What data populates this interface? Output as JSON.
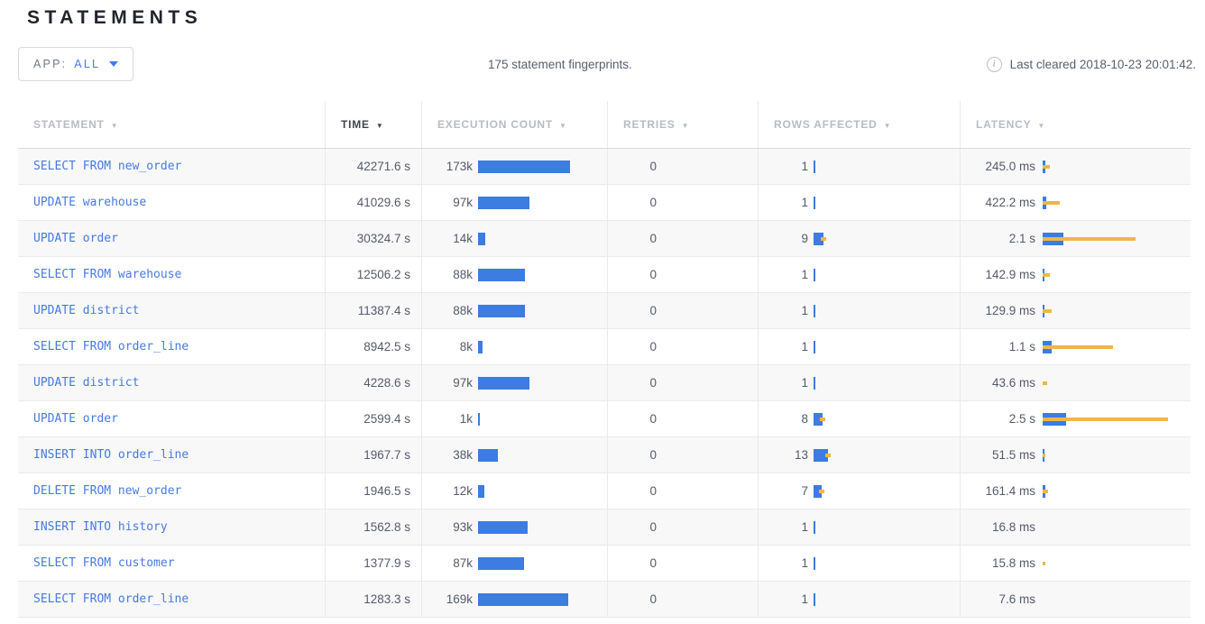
{
  "page": {
    "title": "STATEMENTS"
  },
  "toolbar": {
    "app_filter": {
      "label": "APP:",
      "value": "ALL"
    },
    "summary": "175 statement fingerprints.",
    "info_icon": "i",
    "last_cleared": "Last cleared 2018-10-23 20:01:42."
  },
  "colors": {
    "bar_blue": "#3d7ce0",
    "bar_yellow": "#eeb749",
    "statement_link": "#4879e2"
  },
  "table": {
    "columns": [
      {
        "id": "statement",
        "label": "STATEMENT",
        "sorted": false
      },
      {
        "id": "time",
        "label": "TIME",
        "sorted": true
      },
      {
        "id": "execution-count",
        "label": "EXECUTION COUNT",
        "sorted": false
      },
      {
        "id": "retries",
        "label": "RETRIES",
        "sorted": false
      },
      {
        "id": "rows-affected",
        "label": "ROWS AFFECTED",
        "sorted": false
      },
      {
        "id": "latency",
        "label": "LATENCY",
        "sorted": false
      }
    ],
    "sort_icon": "▼",
    "rows": [
      {
        "statement": "SELECT FROM new_order",
        "time": "42271.6 s",
        "executions": {
          "label": "173k",
          "bar": 102
        },
        "retries": "0",
        "rows_affected": {
          "label": "1",
          "bar": 2,
          "dev": 0
        },
        "latency": {
          "label": "245.0 ms",
          "bar": 3,
          "dev": 8
        }
      },
      {
        "statement": "UPDATE warehouse",
        "time": "41029.6 s",
        "executions": {
          "label": "97k",
          "bar": 57
        },
        "retries": "0",
        "rows_affected": {
          "label": "1",
          "bar": 2,
          "dev": 0
        },
        "latency": {
          "label": "422.2 ms",
          "bar": 4,
          "dev": 19
        }
      },
      {
        "statement": "UPDATE order",
        "time": "30324.7 s",
        "executions": {
          "label": "14k",
          "bar": 8
        },
        "retries": "0",
        "rows_affected": {
          "label": "9",
          "bar": 11,
          "dev": 6
        },
        "latency": {
          "label": "2.1 s",
          "bar": 23,
          "dev": 103
        }
      },
      {
        "statement": "SELECT FROM warehouse",
        "time": "12506.2 s",
        "executions": {
          "label": "88k",
          "bar": 52
        },
        "retries": "0",
        "rows_affected": {
          "label": "1",
          "bar": 2,
          "dev": 0
        },
        "latency": {
          "label": "142.9 ms",
          "bar": 2,
          "dev": 8
        }
      },
      {
        "statement": "UPDATE district",
        "time": "11387.4 s",
        "executions": {
          "label": "88k",
          "bar": 52
        },
        "retries": "0",
        "rows_affected": {
          "label": "1",
          "bar": 2,
          "dev": 0
        },
        "latency": {
          "label": "129.9 ms",
          "bar": 2,
          "dev": 10
        }
      },
      {
        "statement": "SELECT FROM order_line",
        "time": "8942.5 s",
        "executions": {
          "label": "8k",
          "bar": 5
        },
        "retries": "0",
        "rows_affected": {
          "label": "1",
          "bar": 2,
          "dev": 0
        },
        "latency": {
          "label": "1.1 s",
          "bar": 10,
          "dev": 78
        }
      },
      {
        "statement": "UPDATE district",
        "time": "4228.6 s",
        "executions": {
          "label": "97k",
          "bar": 57
        },
        "retries": "0",
        "rows_affected": {
          "label": "1",
          "bar": 2,
          "dev": 0
        },
        "latency": {
          "label": "43.6 ms",
          "bar": 0,
          "dev": 5
        }
      },
      {
        "statement": "UPDATE order",
        "time": "2599.4 s",
        "executions": {
          "label": "1k",
          "bar": 2
        },
        "retries": "0",
        "rows_affected": {
          "label": "8",
          "bar": 10,
          "dev": 6
        },
        "latency": {
          "label": "2.5 s",
          "bar": 26,
          "dev": 139
        }
      },
      {
        "statement": "INSERT INTO order_line",
        "time": "1967.7 s",
        "executions": {
          "label": "38k",
          "bar": 22
        },
        "retries": "0",
        "rows_affected": {
          "label": "13",
          "bar": 16,
          "dev": 6
        },
        "latency": {
          "label": "51.5 ms",
          "bar": 2,
          "dev": 3
        }
      },
      {
        "statement": "DELETE FROM new_order",
        "time": "1946.5 s",
        "executions": {
          "label": "12k",
          "bar": 7
        },
        "retries": "0",
        "rows_affected": {
          "label": "7",
          "bar": 9,
          "dev": 6
        },
        "latency": {
          "label": "161.4 ms",
          "bar": 3,
          "dev": 6
        }
      },
      {
        "statement": "INSERT INTO history",
        "time": "1562.8 s",
        "executions": {
          "label": "93k",
          "bar": 55
        },
        "retries": "0",
        "rows_affected": {
          "label": "1",
          "bar": 2,
          "dev": 0
        },
        "latency": {
          "label": "16.8 ms",
          "bar": 0,
          "dev": 0
        }
      },
      {
        "statement": "SELECT FROM customer",
        "time": "1377.9 s",
        "executions": {
          "label": "87k",
          "bar": 51
        },
        "retries": "0",
        "rows_affected": {
          "label": "1",
          "bar": 2,
          "dev": 0
        },
        "latency": {
          "label": "15.8 ms",
          "bar": 0,
          "dev": 3
        }
      },
      {
        "statement": "SELECT FROM order_line",
        "time": "1283.3 s",
        "executions": {
          "label": "169k",
          "bar": 100
        },
        "retries": "0",
        "rows_affected": {
          "label": "1",
          "bar": 2,
          "dev": 0
        },
        "latency": {
          "label": "7.6 ms",
          "bar": 0,
          "dev": 0
        }
      }
    ]
  }
}
